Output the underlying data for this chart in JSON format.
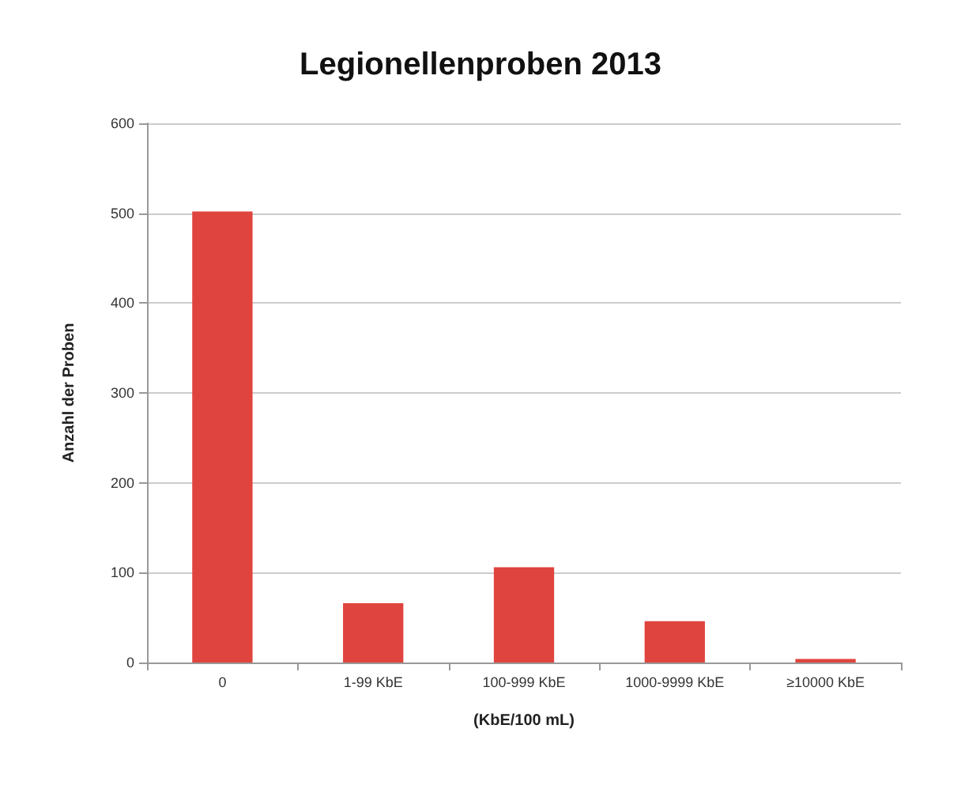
{
  "chart_data": {
    "type": "bar",
    "title": "Legionellenproben 2013",
    "xlabel": "(KbE/100 mL)",
    "ylabel": "Anzahl der Proben",
    "categories": [
      "0",
      "1-99 KbE",
      "100-999 KbE",
      "1000-9999 KbE",
      "≥10000 KbE"
    ],
    "values": [
      502,
      66,
      106,
      46,
      4
    ],
    "color": "#e0443e",
    "ylim": [
      0,
      600
    ],
    "yticks": [
      0,
      100,
      200,
      300,
      400,
      500,
      600
    ],
    "grid": "y"
  }
}
